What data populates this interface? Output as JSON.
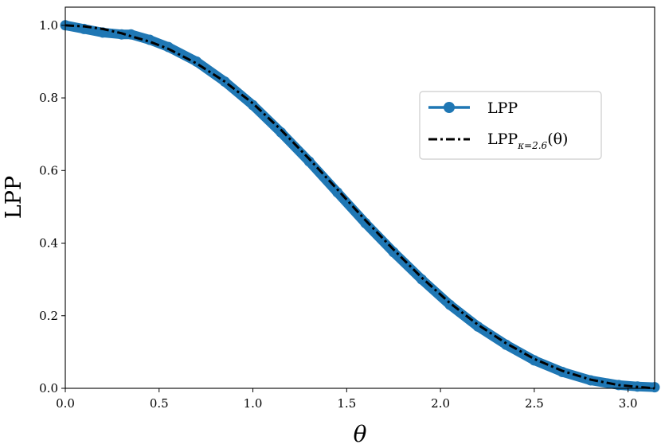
{
  "chart_data": {
    "type": "line",
    "xlabel": "θ",
    "ylabel": "LPP",
    "xlim": [
      0,
      3.1416
    ],
    "ylim": [
      0,
      1.05
    ],
    "xticks": [
      "0.0",
      "0.5",
      "1.0",
      "1.5",
      "2.0",
      "2.5",
      "3.0"
    ],
    "yticks": [
      "0.0",
      "0.2",
      "0.4",
      "0.6",
      "0.8",
      "1.0"
    ],
    "grid": false,
    "legend_position": "right",
    "x": [
      0.0,
      0.1,
      0.2,
      0.3,
      0.35,
      0.45,
      0.55,
      0.7,
      0.85,
      1.0,
      1.15,
      1.3,
      1.45,
      1.6,
      1.75,
      1.9,
      2.05,
      2.2,
      2.35,
      2.5,
      2.65,
      2.8,
      2.95,
      3.05,
      3.1416
    ],
    "series": [
      {
        "name": "LPP",
        "style": "thick-solid-with-markers",
        "color": "#1f77b4",
        "values": [
          1.0,
          0.99,
          0.98,
          0.975,
          0.975,
          0.96,
          0.94,
          0.9,
          0.845,
          0.78,
          0.705,
          0.625,
          0.54,
          0.455,
          0.375,
          0.3,
          0.23,
          0.17,
          0.12,
          0.077,
          0.045,
          0.022,
          0.009,
          0.005,
          0.003
        ]
      },
      {
        "name": "LPP_κ=2.6(θ)",
        "legend_main": "LPP",
        "legend_sub": "κ=2.6",
        "legend_suffix": "(θ)",
        "style": "dashdot",
        "color": "#000000",
        "values": [
          1.0,
          0.997,
          0.99,
          0.978,
          0.97,
          0.955,
          0.935,
          0.895,
          0.845,
          0.785,
          0.712,
          0.632,
          0.548,
          0.463,
          0.382,
          0.305,
          0.235,
          0.175,
          0.124,
          0.081,
          0.048,
          0.024,
          0.009,
          0.004,
          0.0
        ]
      }
    ]
  }
}
